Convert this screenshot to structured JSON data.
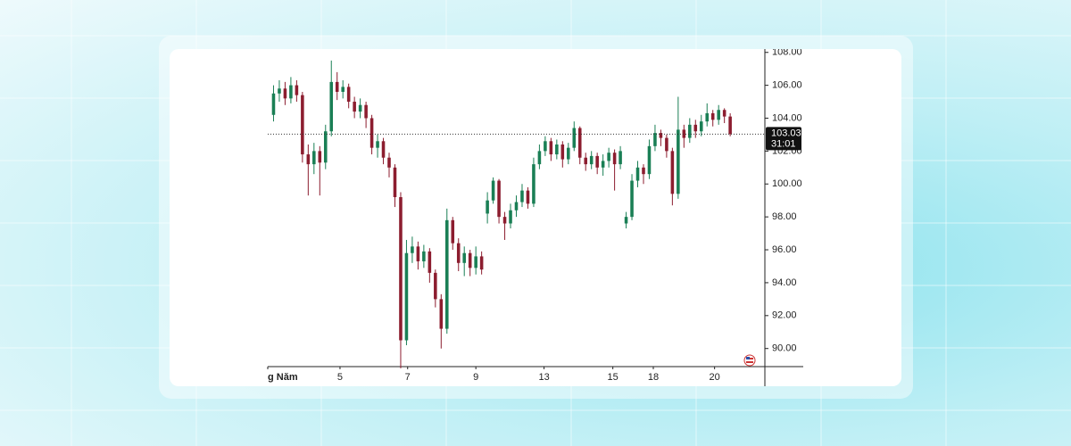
{
  "chart_data": {
    "type": "candlestick",
    "up_color": "#1a7f55",
    "down_color": "#8c1d2f",
    "x": [
      1,
      2,
      3,
      4,
      5,
      6,
      7,
      8,
      9,
      10,
      11,
      12,
      13,
      14,
      15,
      16,
      17,
      18,
      19,
      20,
      21,
      22,
      23,
      24,
      25,
      26,
      27,
      28,
      29,
      30,
      31,
      32,
      33,
      34,
      35,
      36,
      37,
      38,
      39,
      40,
      41,
      42,
      43,
      44,
      45,
      46,
      47,
      48,
      49,
      50,
      51,
      52,
      53,
      54,
      55,
      56,
      57,
      58,
      59,
      60,
      61,
      62,
      63,
      64,
      65,
      66,
      67,
      68,
      69,
      70,
      71,
      72,
      73,
      74,
      75,
      76,
      77,
      78,
      79,
      80
    ],
    "open": [
      104.2,
      105.5,
      105.8,
      105.2,
      106.0,
      105.4,
      101.8,
      101.2,
      102.0,
      101.3,
      103.2,
      106.2,
      105.6,
      105.9,
      105.0,
      104.4,
      104.8,
      104.0,
      102.2,
      102.6,
      101.6,
      101.0,
      99.2,
      90.5,
      95.8,
      96.2,
      95.3,
      95.9,
      94.6,
      93.0,
      91.2,
      97.8,
      96.4,
      95.2,
      95.8,
      94.9,
      95.6,
      98.2,
      99.0,
      100.2,
      98.0,
      97.6,
      98.4,
      98.9,
      99.6,
      98.8,
      101.2,
      102.0,
      102.6,
      101.8,
      102.4,
      101.5,
      102.2,
      103.4,
      101.6,
      101.2,
      101.7,
      101.0,
      101.4,
      101.9,
      101.2,
      97.6,
      98.0,
      100.2,
      101.0,
      100.6,
      102.3,
      103.1,
      102.8,
      102.0,
      99.4,
      103.3,
      102.8,
      103.6,
      103.2,
      103.8,
      104.3,
      103.9,
      104.5,
      104.1
    ],
    "high": [
      106.0,
      106.3,
      106.2,
      106.5,
      106.3,
      105.6,
      102.4,
      102.5,
      102.3,
      103.6,
      107.5,
      106.8,
      106.3,
      106.1,
      105.3,
      105.2,
      105.0,
      104.2,
      103.0,
      102.8,
      101.9,
      101.2,
      99.5,
      96.6,
      96.8,
      96.5,
      96.3,
      96.1,
      94.8,
      93.3,
      98.5,
      98.0,
      96.7,
      96.2,
      96.0,
      96.2,
      95.9,
      99.5,
      100.4,
      100.3,
      98.3,
      98.8,
      99.3,
      100.0,
      99.8,
      101.6,
      102.4,
      102.9,
      102.8,
      102.7,
      102.6,
      102.5,
      103.8,
      103.5,
      101.9,
      102.0,
      101.9,
      101.8,
      102.2,
      102.1,
      102.3,
      98.3,
      100.6,
      101.4,
      101.2,
      102.7,
      103.6,
      103.3,
      103.0,
      102.2,
      105.3,
      103.6,
      104.0,
      103.9,
      104.2,
      104.9,
      104.5,
      104.8,
      104.6,
      104.3
    ],
    "low": [
      103.8,
      105.0,
      104.8,
      104.9,
      105.0,
      101.3,
      99.3,
      100.6,
      99.3,
      100.9,
      102.9,
      105.1,
      105.2,
      104.6,
      104.0,
      104.0,
      103.4,
      101.8,
      101.6,
      101.2,
      100.4,
      98.6,
      88.8,
      90.2,
      95.2,
      94.8,
      94.9,
      94.0,
      92.5,
      90.0,
      90.9,
      96.0,
      94.7,
      94.4,
      94.4,
      94.5,
      94.5,
      97.6,
      98.8,
      97.6,
      96.6,
      97.3,
      98.0,
      98.6,
      98.5,
      98.6,
      100.9,
      101.7,
      101.4,
      101.5,
      101.0,
      101.2,
      102.0,
      101.2,
      100.8,
      100.9,
      100.6,
      100.5,
      101.0,
      99.6,
      100.9,
      97.3,
      97.8,
      99.8,
      100.0,
      100.3,
      102.0,
      102.3,
      101.6,
      98.7,
      99.1,
      102.2,
      102.5,
      102.8,
      102.9,
      103.5,
      103.5,
      103.6,
      103.7,
      102.9
    ],
    "close": [
      105.5,
      105.8,
      105.2,
      106.0,
      105.4,
      101.8,
      101.2,
      102.0,
      101.3,
      103.2,
      106.2,
      105.6,
      105.9,
      105.0,
      104.4,
      104.8,
      104.0,
      102.2,
      102.6,
      101.6,
      101.0,
      99.2,
      90.5,
      95.8,
      96.2,
      95.3,
      95.9,
      94.6,
      93.0,
      91.2,
      97.8,
      96.4,
      95.2,
      95.8,
      94.9,
      95.6,
      94.8,
      99.0,
      100.2,
      98.0,
      97.6,
      98.4,
      98.9,
      99.6,
      98.8,
      101.2,
      102.0,
      102.6,
      101.8,
      102.4,
      101.5,
      102.2,
      103.4,
      101.6,
      101.2,
      101.7,
      101.0,
      101.4,
      101.9,
      101.2,
      102.0,
      98.0,
      100.2,
      101.0,
      100.6,
      102.3,
      103.1,
      102.8,
      102.0,
      99.4,
      103.3,
      102.8,
      103.6,
      103.2,
      103.8,
      104.3,
      103.9,
      104.5,
      104.1,
      103.03
    ],
    "xlim": [
      0,
      86
    ],
    "xticks": [
      {
        "value": 0,
        "label": "g Năm"
      },
      {
        "value": 12.5,
        "label": "5"
      },
      {
        "value": 24.2,
        "label": "7"
      },
      {
        "value": 36,
        "label": "9"
      },
      {
        "value": 47.8,
        "label": "13"
      },
      {
        "value": 59.7,
        "label": "15"
      },
      {
        "value": 66.7,
        "label": "18"
      },
      {
        "value": 77.3,
        "label": "20"
      }
    ],
    "ylim": [
      88.9,
      108.2
    ],
    "yticks": [
      {
        "value": 90,
        "label": "90.00"
      },
      {
        "value": 92,
        "label": "92.00"
      },
      {
        "value": 94,
        "label": "94.00"
      },
      {
        "value": 96,
        "label": "96.00"
      },
      {
        "value": 98,
        "label": "98.00"
      },
      {
        "value": 100,
        "label": "100.00"
      },
      {
        "value": 102,
        "label": "102.00"
      },
      {
        "value": 104,
        "label": "104.00"
      },
      {
        "value": 106,
        "label": "106.00"
      },
      {
        "value": 108,
        "label": "108.00"
      }
    ],
    "last_price": 103.03,
    "countdown": "31:01"
  }
}
